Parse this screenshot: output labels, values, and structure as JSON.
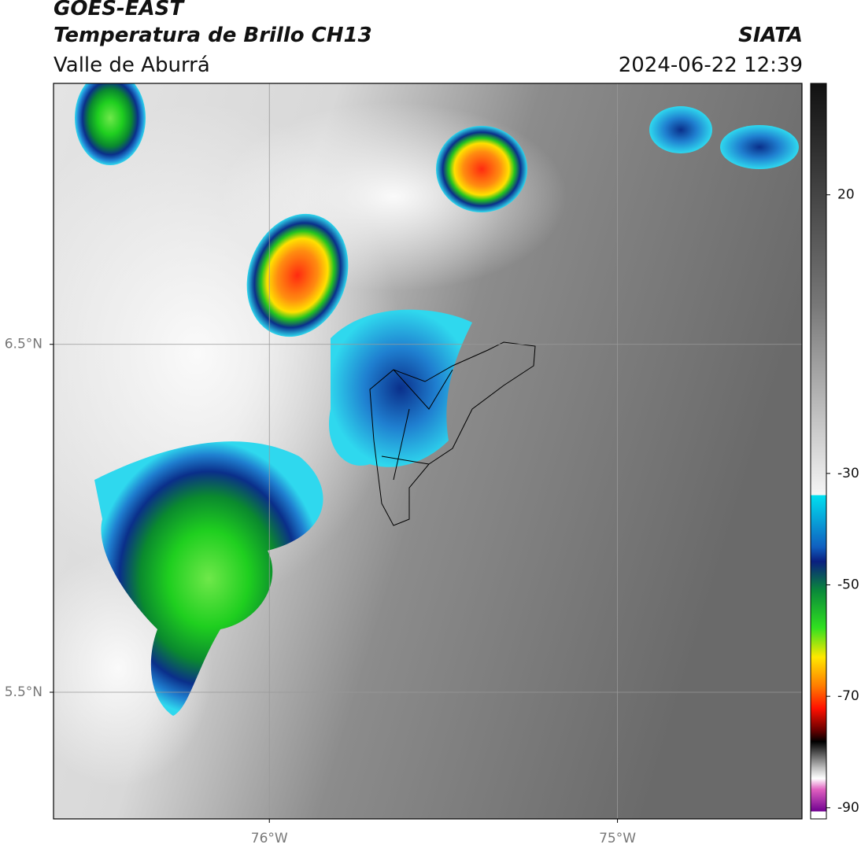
{
  "header": {
    "title": "GOES-EAST",
    "subtitle": "Temperatura de Brillo CH13",
    "source": "SIATA",
    "region": "Valle de Aburrá",
    "timestamp": "2024-06-22 12:39"
  },
  "map": {
    "xlim": [
      -76.62,
      -74.47
    ],
    "ylim": [
      5.136,
      7.25
    ],
    "xticks": [
      {
        "value": -76,
        "label": "76°W"
      },
      {
        "value": -75,
        "label": "75°W"
      }
    ],
    "yticks": [
      {
        "value": 6.5,
        "label": "6.5°N"
      },
      {
        "value": 5.5,
        "label": "5.5°N"
      }
    ],
    "grid": true
  },
  "colorbar": {
    "lim": [
      -92,
      40
    ],
    "ticks": [
      20,
      -30,
      -50,
      -70,
      -90
    ]
  }
}
